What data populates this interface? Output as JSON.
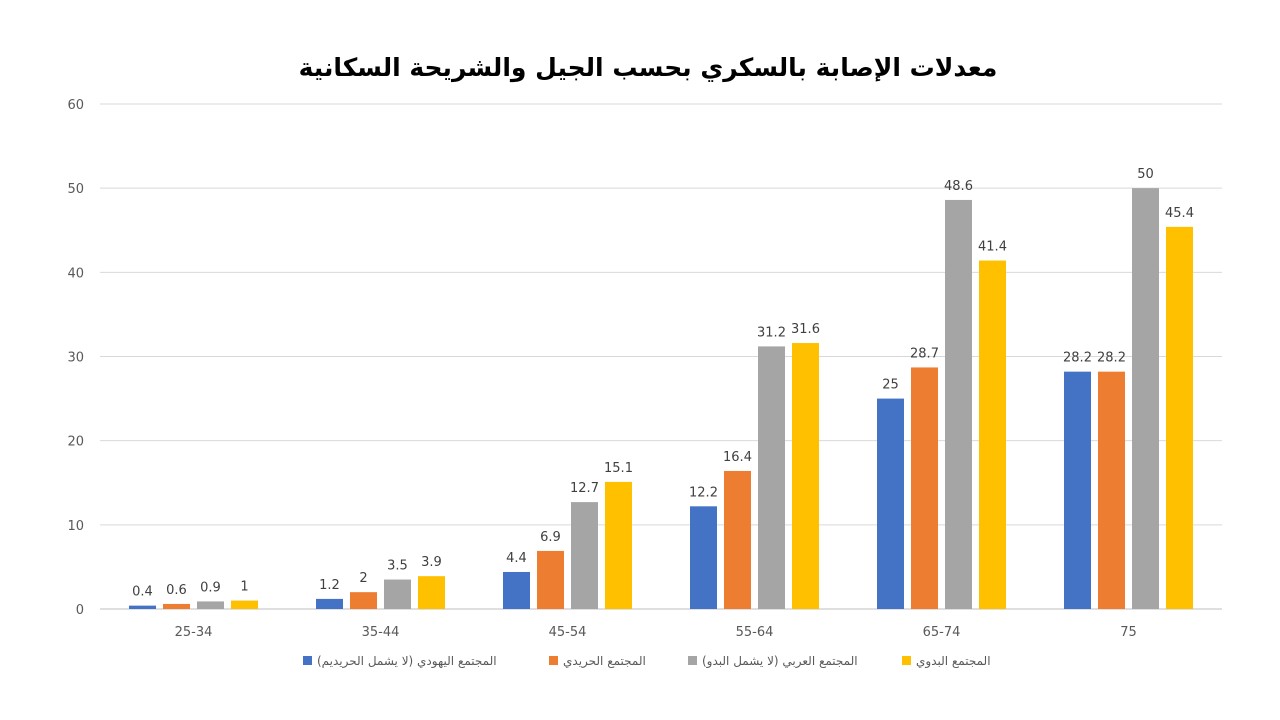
{
  "chart_data": {
    "type": "bar",
    "title": "معدلات الإصابة بالسكري بحسب الجيل والشريحة السكانية",
    "categories": [
      "25-34",
      "35-44",
      "45-54",
      "55-64",
      "65-74",
      "75"
    ],
    "series": [
      {
        "name": "المجتمع اليهودي (لا يشمل الحريديم)",
        "color": "#4472C4",
        "values": [
          0.4,
          1.2,
          4.4,
          12.2,
          25,
          28.2
        ]
      },
      {
        "name": "المجتمع الحريدي",
        "color": "#ED7D31",
        "values": [
          0.6,
          2,
          6.9,
          16.4,
          28.7,
          28.2
        ]
      },
      {
        "name": "المجتمع العربي (لا يشمل البدو)",
        "color": "#A5A5A5",
        "values": [
          0.9,
          3.5,
          12.7,
          31.2,
          48.6,
          50
        ]
      },
      {
        "name": "المجتمع البدوي",
        "color": "#FFC000",
        "values": [
          1,
          3.9,
          15.1,
          31.6,
          41.4,
          45.4
        ]
      }
    ],
    "ylim": [
      0,
      60
    ],
    "yticks": [
      0,
      10,
      20,
      30,
      40,
      50,
      60
    ],
    "grid": true,
    "data_labels": true,
    "legend_position": "bottom"
  }
}
